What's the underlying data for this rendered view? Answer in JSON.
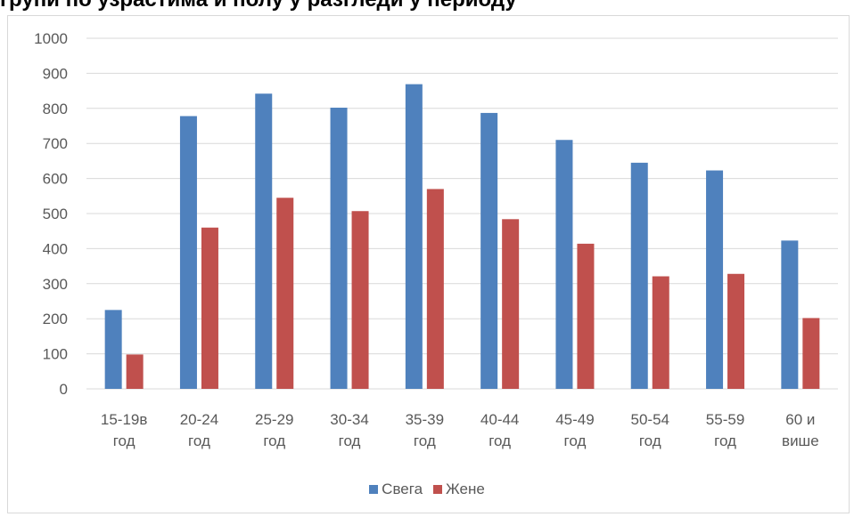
{
  "header": {
    "cropped_title": "групи по узрастима и полу у разгледи у периоду"
  },
  "chart_data": {
    "type": "bar",
    "title": "",
    "xlabel": "",
    "ylabel": "",
    "ylim": [
      0,
      1000
    ],
    "yticks": [
      0,
      100,
      200,
      300,
      400,
      500,
      600,
      700,
      800,
      900,
      1000
    ],
    "grid": true,
    "legend_position": "bottom",
    "categories": [
      [
        "15-19в",
        "год"
      ],
      [
        "20-24",
        "год"
      ],
      [
        "25-29",
        "год"
      ],
      [
        "30-34",
        "год"
      ],
      [
        "35-39",
        "год"
      ],
      [
        "40-44",
        "год"
      ],
      [
        "45-49",
        "год"
      ],
      [
        "50-54",
        "год"
      ],
      [
        "55-59",
        "год"
      ],
      [
        "60 и",
        "више"
      ]
    ],
    "series": [
      {
        "name": "Свега",
        "color": "#4f81bd",
        "values": [
          225,
          778,
          842,
          802,
          869,
          787,
          710,
          645,
          623,
          423
        ]
      },
      {
        "name": "Жене",
        "color": "#c0504d",
        "values": [
          98,
          460,
          545,
          507,
          570,
          484,
          414,
          321,
          328,
          202
        ]
      }
    ]
  }
}
